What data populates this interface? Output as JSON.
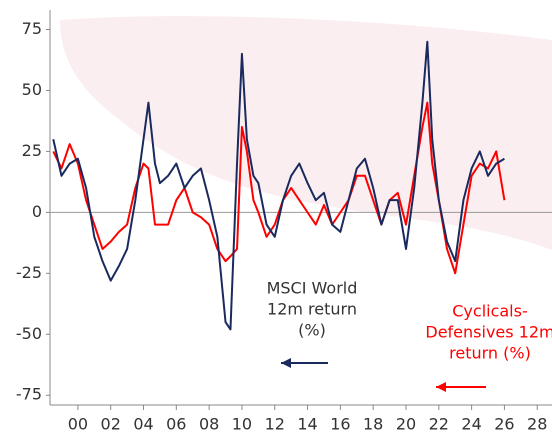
{
  "chart_data": {
    "type": "line",
    "x": [
      -1.5,
      -1,
      -0.5,
      0,
      0.5,
      1,
      1.5,
      2,
      2.5,
      3,
      3.5,
      4,
      4.3,
      4.7,
      5,
      5.5,
      6,
      6.5,
      7,
      7.5,
      8,
      8.5,
      9,
      9.3,
      9.7,
      10,
      10.3,
      10.7,
      11,
      11.5,
      12,
      12.5,
      13,
      13.5,
      14,
      14.5,
      15,
      15.5,
      16,
      16.5,
      17,
      17.5,
      18,
      18.5,
      19,
      19.5,
      20,
      20.5,
      21,
      21.3,
      21.6,
      22,
      22.5,
      23,
      23.5,
      24,
      24.5,
      25,
      25.5,
      26
    ],
    "series": [
      {
        "label_lines": [
          "MSCI World",
          "12m return",
          "(%)"
        ],
        "color": "#1a2a5e",
        "values": [
          30,
          15,
          20,
          22,
          10,
          -10,
          -20,
          -28,
          -22,
          -15,
          5,
          30,
          45,
          20,
          12,
          15,
          20,
          10,
          15,
          18,
          5,
          -10,
          -45,
          -48,
          20,
          65,
          30,
          15,
          12,
          -5,
          -10,
          5,
          15,
          20,
          12,
          5,
          8,
          -5,
          -8,
          5,
          18,
          22,
          10,
          -5,
          5,
          5,
          -15,
          10,
          45,
          70,
          30,
          5,
          -12,
          -20,
          5,
          18,
          25,
          15,
          20,
          22
        ]
      },
      {
        "label_lines": [
          "Cyclicals-",
          "Defensives 12m",
          "return (%)"
        ],
        "color": "#ff0000",
        "values": [
          25,
          18,
          28,
          20,
          5,
          -5,
          -15,
          -12,
          -8,
          -5,
          10,
          20,
          18,
          -5,
          -5,
          -5,
          5,
          10,
          0,
          -2,
          -5,
          -15,
          -20,
          -18,
          -15,
          35,
          25,
          5,
          0,
          -10,
          -5,
          5,
          10,
          5,
          0,
          -5,
          3,
          -5,
          0,
          5,
          15,
          15,
          5,
          -5,
          5,
          8,
          -5,
          15,
          35,
          45,
          20,
          5,
          -15,
          -25,
          -5,
          15,
          20,
          18,
          25,
          5
        ]
      }
    ],
    "xlim": [
      -1.7,
      28.9
    ],
    "ylim": [
      -79,
      83
    ],
    "xticks": [
      {
        "value": 0,
        "label": "00"
      },
      {
        "value": 2,
        "label": "02"
      },
      {
        "value": 4,
        "label": "04"
      },
      {
        "value": 6,
        "label": "06"
      },
      {
        "value": 8,
        "label": "08"
      },
      {
        "value": 10,
        "label": "10"
      },
      {
        "value": 12,
        "label": "12"
      },
      {
        "value": 14,
        "label": "14"
      },
      {
        "value": 16,
        "label": "16"
      },
      {
        "value": 18,
        "label": "18"
      },
      {
        "value": 20,
        "label": "20"
      },
      {
        "value": 22,
        "label": "22"
      },
      {
        "value": 24,
        "label": "24"
      },
      {
        "value": 26,
        "label": "26"
      },
      {
        "value": 28,
        "label": "28"
      }
    ],
    "yticks": [
      75,
      50,
      25,
      0,
      -25,
      -50,
      -75
    ]
  }
}
